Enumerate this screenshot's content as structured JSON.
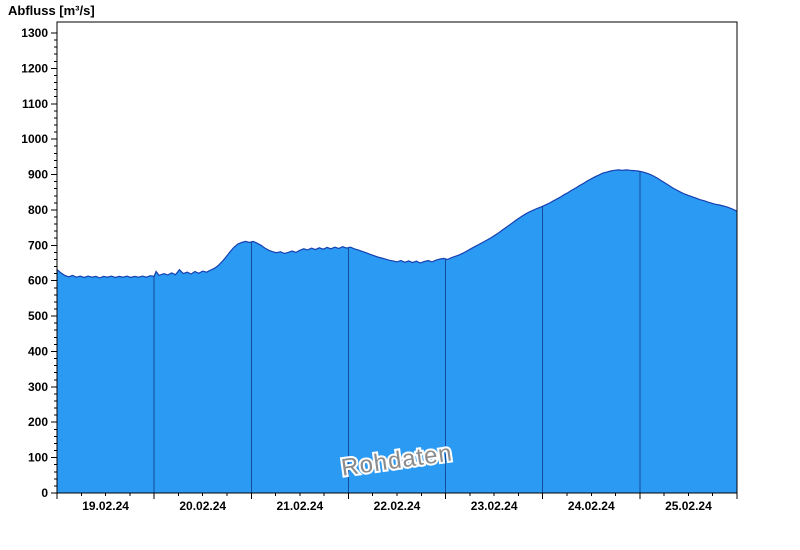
{
  "chart_data": {
    "type": "area",
    "title": "Abfluss [m³/s]",
    "ylabel": "Abfluss [m³/s]",
    "xlabel": "",
    "watermark": "Rohdaten",
    "legend": "none",
    "grid": "vertical-lines-at-day-boundaries-inside-area",
    "ylim": [
      0,
      1300
    ],
    "y_ticks": [
      0,
      100,
      200,
      300,
      400,
      500,
      600,
      700,
      800,
      900,
      1000,
      1100,
      1200,
      1300
    ],
    "x_domain_days": [
      0,
      7
    ],
    "x_day_labels": [
      "19.02.24",
      "20.02.24",
      "21.02.24",
      "22.02.24",
      "23.02.24",
      "24.02.24",
      "25.02.24"
    ],
    "colors": {
      "area_fill": "#2b9af3",
      "area_stroke": "#1640b0",
      "day_line": "#164a9a",
      "axis": "#000000",
      "watermark": "#8c8c8c",
      "background": "#ffffff"
    },
    "series": [
      {
        "name": "Rohdaten",
        "unit": "m³/s",
        "points": [
          [
            0.0,
            632
          ],
          [
            0.04,
            622
          ],
          [
            0.08,
            615
          ],
          [
            0.12,
            611
          ],
          [
            0.16,
            615
          ],
          [
            0.2,
            610
          ],
          [
            0.24,
            613
          ],
          [
            0.28,
            609
          ],
          [
            0.32,
            613
          ],
          [
            0.36,
            610
          ],
          [
            0.4,
            612
          ],
          [
            0.44,
            608
          ],
          [
            0.48,
            612
          ],
          [
            0.52,
            610
          ],
          [
            0.56,
            613
          ],
          [
            0.6,
            609
          ],
          [
            0.64,
            612
          ],
          [
            0.68,
            610
          ],
          [
            0.72,
            613
          ],
          [
            0.76,
            609
          ],
          [
            0.8,
            612
          ],
          [
            0.84,
            610
          ],
          [
            0.88,
            613
          ],
          [
            0.92,
            610
          ],
          [
            0.96,
            614
          ],
          [
            1.0,
            612
          ],
          [
            1.02,
            626
          ],
          [
            1.05,
            615
          ],
          [
            1.1,
            620
          ],
          [
            1.14,
            616
          ],
          [
            1.18,
            622
          ],
          [
            1.22,
            617
          ],
          [
            1.26,
            631
          ],
          [
            1.3,
            620
          ],
          [
            1.34,
            624
          ],
          [
            1.38,
            619
          ],
          [
            1.42,
            626
          ],
          [
            1.46,
            621
          ],
          [
            1.5,
            627
          ],
          [
            1.54,
            624
          ],
          [
            1.58,
            630
          ],
          [
            1.62,
            635
          ],
          [
            1.66,
            643
          ],
          [
            1.7,
            654
          ],
          [
            1.74,
            667
          ],
          [
            1.78,
            681
          ],
          [
            1.82,
            694
          ],
          [
            1.86,
            703
          ],
          [
            1.9,
            708
          ],
          [
            1.94,
            711
          ],
          [
            1.98,
            708
          ],
          [
            2.02,
            711
          ],
          [
            2.06,
            706
          ],
          [
            2.1,
            700
          ],
          [
            2.14,
            692
          ],
          [
            2.18,
            686
          ],
          [
            2.22,
            682
          ],
          [
            2.26,
            679
          ],
          [
            2.3,
            682
          ],
          [
            2.34,
            677
          ],
          [
            2.38,
            680
          ],
          [
            2.42,
            684
          ],
          [
            2.46,
            680
          ],
          [
            2.5,
            686
          ],
          [
            2.54,
            690
          ],
          [
            2.58,
            687
          ],
          [
            2.62,
            692
          ],
          [
            2.66,
            688
          ],
          [
            2.7,
            693
          ],
          [
            2.74,
            689
          ],
          [
            2.78,
            694
          ],
          [
            2.82,
            690
          ],
          [
            2.86,
            695
          ],
          [
            2.9,
            691
          ],
          [
            2.94,
            696
          ],
          [
            2.98,
            692
          ],
          [
            3.02,
            695
          ],
          [
            3.06,
            690
          ],
          [
            3.1,
            687
          ],
          [
            3.14,
            683
          ],
          [
            3.18,
            679
          ],
          [
            3.22,
            675
          ],
          [
            3.26,
            671
          ],
          [
            3.3,
            667
          ],
          [
            3.34,
            664
          ],
          [
            3.38,
            661
          ],
          [
            3.42,
            658
          ],
          [
            3.46,
            656
          ],
          [
            3.5,
            653
          ],
          [
            3.54,
            657
          ],
          [
            3.58,
            652
          ],
          [
            3.62,
            656
          ],
          [
            3.66,
            651
          ],
          [
            3.7,
            655
          ],
          [
            3.74,
            650
          ],
          [
            3.78,
            654
          ],
          [
            3.82,
            657
          ],
          [
            3.86,
            653
          ],
          [
            3.9,
            658
          ],
          [
            3.94,
            661
          ],
          [
            3.98,
            663
          ],
          [
            4.02,
            660
          ],
          [
            4.06,
            665
          ],
          [
            4.1,
            669
          ],
          [
            4.14,
            673
          ],
          [
            4.18,
            678
          ],
          [
            4.22,
            684
          ],
          [
            4.26,
            690
          ],
          [
            4.3,
            696
          ],
          [
            4.34,
            702
          ],
          [
            4.38,
            708
          ],
          [
            4.42,
            714
          ],
          [
            4.46,
            720
          ],
          [
            4.5,
            727
          ],
          [
            4.54,
            734
          ],
          [
            4.58,
            742
          ],
          [
            4.62,
            750
          ],
          [
            4.66,
            758
          ],
          [
            4.7,
            766
          ],
          [
            4.74,
            774
          ],
          [
            4.78,
            781
          ],
          [
            4.82,
            788
          ],
          [
            4.86,
            794
          ],
          [
            4.9,
            799
          ],
          [
            4.94,
            804
          ],
          [
            4.98,
            808
          ],
          [
            5.02,
            813
          ],
          [
            5.06,
            818
          ],
          [
            5.1,
            824
          ],
          [
            5.14,
            830
          ],
          [
            5.18,
            836
          ],
          [
            5.22,
            843
          ],
          [
            5.26,
            849
          ],
          [
            5.3,
            856
          ],
          [
            5.34,
            862
          ],
          [
            5.38,
            869
          ],
          [
            5.42,
            875
          ],
          [
            5.46,
            882
          ],
          [
            5.5,
            888
          ],
          [
            5.54,
            894
          ],
          [
            5.58,
            899
          ],
          [
            5.62,
            904
          ],
          [
            5.66,
            907
          ],
          [
            5.7,
            910
          ],
          [
            5.74,
            912
          ],
          [
            5.78,
            913
          ],
          [
            5.82,
            912
          ],
          [
            5.86,
            913
          ],
          [
            5.9,
            912
          ],
          [
            5.94,
            911
          ],
          [
            5.98,
            910
          ],
          [
            6.02,
            908
          ],
          [
            6.06,
            905
          ],
          [
            6.1,
            901
          ],
          [
            6.14,
            896
          ],
          [
            6.18,
            890
          ],
          [
            6.22,
            883
          ],
          [
            6.26,
            876
          ],
          [
            6.3,
            869
          ],
          [
            6.34,
            862
          ],
          [
            6.38,
            856
          ],
          [
            6.42,
            850
          ],
          [
            6.46,
            845
          ],
          [
            6.5,
            841
          ],
          [
            6.54,
            837
          ],
          [
            6.58,
            833
          ],
          [
            6.62,
            829
          ],
          [
            6.66,
            826
          ],
          [
            6.7,
            822
          ],
          [
            6.74,
            819
          ],
          [
            6.78,
            816
          ],
          [
            6.82,
            814
          ],
          [
            6.86,
            811
          ],
          [
            6.9,
            808
          ],
          [
            6.94,
            804
          ],
          [
            6.98,
            799
          ],
          [
            7.0,
            796
          ]
        ]
      }
    ]
  }
}
